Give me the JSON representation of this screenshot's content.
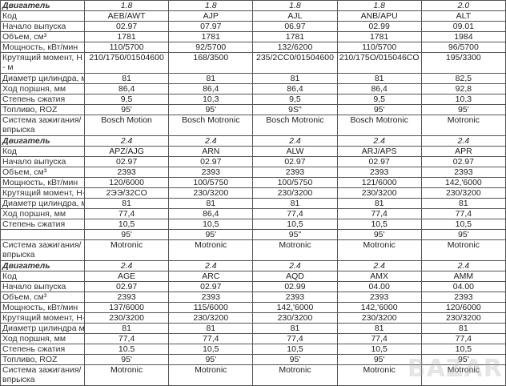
{
  "watermark": "BAZAR",
  "blocks": [
    {
      "rows": [
        {
          "label": "Двигатель",
          "values": [
            "1.8",
            "1.8",
            "1.8",
            "1.8",
            "2.0"
          ],
          "header": true
        },
        {
          "label": "Код",
          "values": [
            "AEB/AWT",
            "AJP",
            "AJL",
            "ANB/APU",
            "ALT"
          ]
        },
        {
          "label": "Начало выпуска",
          "values": [
            "02.97",
            "07.97",
            "06.97",
            "02.99",
            "09.01"
          ]
        },
        {
          "label": "Объем, см³",
          "values": [
            "1781",
            "1781",
            "1781",
            "1781",
            "1984"
          ]
        },
        {
          "label": "Мощность, кВт/мин",
          "values": [
            "110/5700",
            "92/5700",
            "132/6200",
            "110/5700",
            "96/5700"
          ]
        },
        {
          "label": "Крутящий момент, Н - м",
          "values": [
            "210/1750/01504600",
            "168/3500",
            "235/2CC0/01504600",
            "210/175O/015046CO",
            "195/3300"
          ],
          "double": true
        },
        {
          "label": "Диаметр цилиндра, мм",
          "values": [
            "81",
            "81",
            "81",
            "81",
            "82,5"
          ]
        },
        {
          "label": "Ход поршня, мм",
          "values": [
            "86,4",
            "86,4",
            "86,4",
            "86,4",
            "92,8"
          ]
        },
        {
          "label": "Степень сжатия",
          "values": [
            "9,5",
            "10,3",
            "9,5",
            "9,5",
            "10,3"
          ]
        },
        {
          "label": "Топливо, ROZ",
          "values": [
            "95'",
            "95'",
            "9S\"",
            "95'",
            "95'"
          ]
        },
        {
          "label": "Система зажигания/ впрыска",
          "values": [
            "Bosch Motion",
            "Bosch Motronic",
            "Bosch Motronic",
            "Bosch Motronic",
            "Motronic"
          ],
          "double": true
        }
      ]
    },
    {
      "rows": [
        {
          "label": "Двигатель",
          "values": [
            "2.4",
            "2.4",
            "2.4",
            "2.4",
            "2.4"
          ],
          "header": true
        },
        {
          "label": "Код",
          "values": [
            "APZ/AJG",
            "ARN",
            "ALW",
            "ARJ/APS",
            "APR"
          ]
        },
        {
          "label": "Начало выпуска",
          "values": [
            "02.97",
            "02.97",
            "02.97",
            "02.97",
            "02.97"
          ]
        },
        {
          "label": "Объем, см³",
          "values": [
            "2393",
            "2393",
            "2393",
            "2393",
            "2393"
          ]
        },
        {
          "label": "Мощность, кВт/мин",
          "values": [
            "120/6000",
            "100/5750",
            "100/5750",
            "121/6000",
            "142,'6000"
          ]
        },
        {
          "label": "Крутящий момент, Н-м",
          "values": [
            "2ЭЭ/32CO",
            "230/3200",
            "230/3200",
            "230/3200",
            "230/3200"
          ]
        },
        {
          "label": "Диаметр цилиндра, мм",
          "values": [
            "81",
            "81",
            "81",
            "81",
            "81"
          ]
        },
        {
          "label": "Ход поршня, мм",
          "values": [
            "77,4",
            "86,4",
            "77,4",
            "77,4",
            "77,4"
          ]
        },
        {
          "label": "Степень сжатия",
          "values": [
            "10,5",
            "10,5",
            "10,5",
            "10,5",
            "10,5"
          ]
        },
        {
          "label": "",
          "values": [
            "95'",
            "95'",
            "95\"",
            "95'",
            "95'"
          ]
        },
        {
          "label": "Система зажигания/ впрыска",
          "values": [
            "Motronic",
            "Motronic",
            "Motronic",
            "Motronic",
            "Motronic"
          ],
          "double": true
        }
      ]
    },
    {
      "rows": [
        {
          "label": "Двигатель",
          "values": [
            "2.4",
            "2.4",
            "2.4",
            "2.4",
            "2.4"
          ],
          "header": true
        },
        {
          "label": "Код",
          "values": [
            "AGE",
            "ARC",
            "AQD",
            "AMX",
            "AMM"
          ]
        },
        {
          "label": "Начало выпуска",
          "values": [
            "02.97",
            "02.97",
            "02.99",
            "04.00",
            "04.00"
          ]
        },
        {
          "label": "Объем, см³",
          "values": [
            "2393",
            "2393",
            "2393",
            "2393",
            "2393"
          ]
        },
        {
          "label": "Мощность, кВт/мин",
          "values": [
            "137/6000",
            "115/6000",
            "142,'6000",
            "142,'6000",
            "120/6000"
          ]
        },
        {
          "label": "Крутящий момент, Н-м",
          "values": [
            "230/3200",
            "230/3200",
            "230/3200",
            "230/3200",
            "230/3200"
          ]
        },
        {
          "label": "Диаметр цилиндра мм",
          "values": [
            "81",
            "81",
            "81",
            "81",
            "81"
          ]
        },
        {
          "label": "Ход поршня, мм",
          "values": [
            "77,4",
            "77,4",
            "77,4",
            "77,4",
            "77,4"
          ]
        },
        {
          "label": "Степень сжатия",
          "values": [
            "10.5",
            "10,5",
            "10,5",
            "10,5",
            "10,5"
          ]
        },
        {
          "label": "Топливо, ROZ",
          "values": [
            "95'",
            "95'",
            "95'",
            "95'",
            "95'"
          ]
        },
        {
          "label": "Система зажигания/ впрыска",
          "values": [
            "Motronic",
            "Motronic",
            "Motronic",
            "Motronic",
            "Motronic"
          ],
          "double": true
        }
      ]
    }
  ]
}
